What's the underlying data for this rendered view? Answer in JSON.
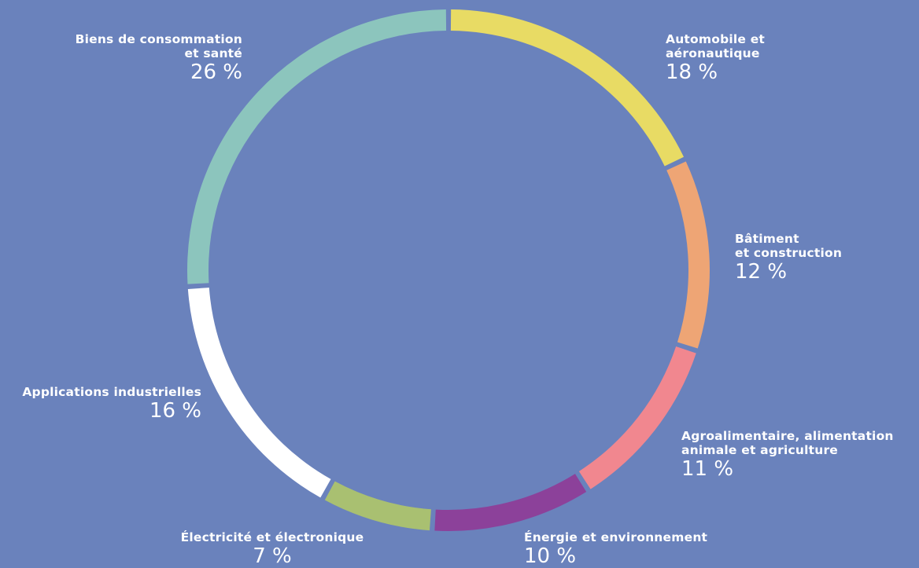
{
  "chart_data": {
    "type": "pie",
    "style": "donut",
    "slices": [
      {
        "name": "Automobile et\naéronautique",
        "value": 18,
        "display": "18 %",
        "color": "#e8db64"
      },
      {
        "name": "Bâtiment\net construction",
        "value": 12,
        "display": "12 %",
        "color": "#eea575"
      },
      {
        "name": "Agroalimentaire, alimentation\nanimale et agriculture",
        "value": 11,
        "display": "11 %",
        "color": "#f1878f"
      },
      {
        "name": "Énergie et environnement",
        "value": 10,
        "display": "10 %",
        "color": "#8c419a"
      },
      {
        "name": "Électricité et électronique",
        "value": 7,
        "display": "7 %",
        "color": "#a9c071"
      },
      {
        "name": "Applications industrielles",
        "value": 16,
        "display": "16 %",
        "color": "#ffffff"
      },
      {
        "name": "Biens de consommation\net santé",
        "value": 26,
        "display": "26 %",
        "color": "#8cc5bd"
      }
    ],
    "background": "#6a82bc"
  }
}
